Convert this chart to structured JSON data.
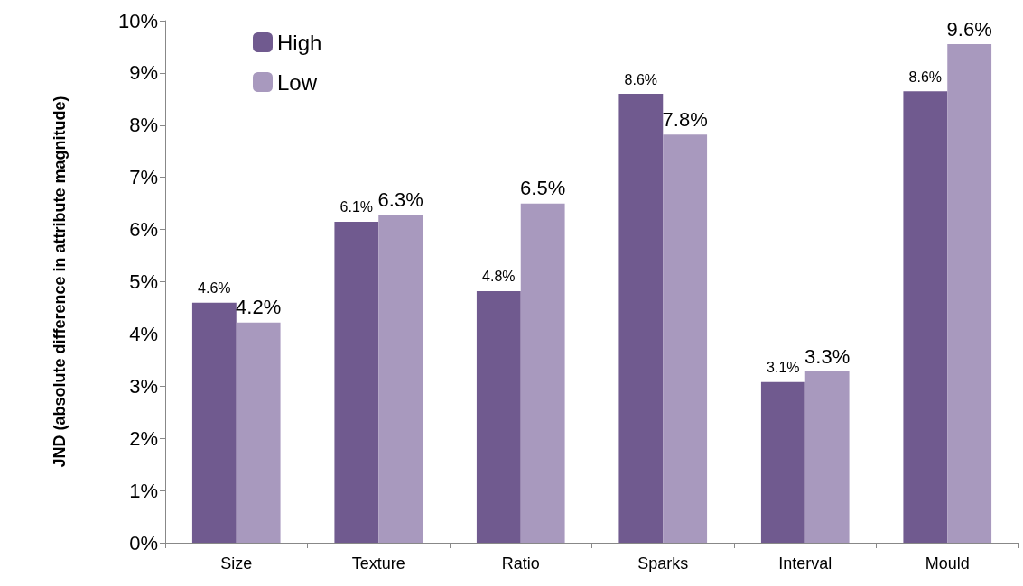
{
  "chart_data": {
    "type": "bar",
    "ylabel": "JND (absolute difference in attribute magnitude)",
    "categories": [
      "Size",
      "Texture",
      "Ratio",
      "Sparks",
      "Interval",
      "Mould"
    ],
    "series": [
      {
        "name": "High",
        "color": "#705a8f",
        "values": [
          4.6,
          6.15,
          4.82,
          8.6,
          3.08,
          8.65
        ],
        "value_labels": [
          "4.6%",
          "6.1%",
          "4.8%",
          "8.6%",
          "3.1%",
          "8.6%"
        ]
      },
      {
        "name": "Low",
        "color": "#a899be",
        "values": [
          4.22,
          6.28,
          6.5,
          7.82,
          3.28,
          9.55
        ],
        "value_labels": [
          "4.2%",
          "6.3%",
          "6.5%",
          "7.8%",
          "3.3%",
          "9.6%"
        ]
      }
    ],
    "ylim": [
      0,
      10
    ],
    "yticks": [
      {
        "value": 0,
        "label": "0%"
      },
      {
        "value": 1,
        "label": "1%"
      },
      {
        "value": 2,
        "label": "2%"
      },
      {
        "value": 3,
        "label": "3%"
      },
      {
        "value": 4,
        "label": "4%"
      },
      {
        "value": 5,
        "label": "5%"
      },
      {
        "value": 6,
        "label": "6%"
      },
      {
        "value": 7,
        "label": "7%"
      },
      {
        "value": 8,
        "label": "8%"
      },
      {
        "value": 9,
        "label": "9%"
      },
      {
        "value": 10,
        "label": "10%"
      }
    ],
    "grid": false,
    "legend": "top left"
  }
}
